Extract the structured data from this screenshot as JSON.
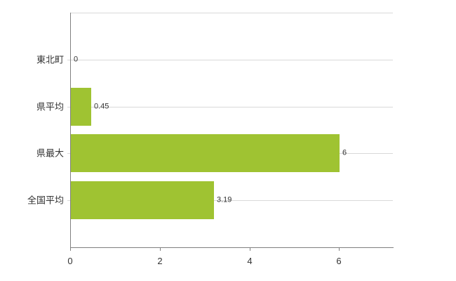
{
  "chart_data": {
    "type": "bar",
    "orientation": "horizontal",
    "title": "",
    "xlabel": "",
    "ylabel": "",
    "categories": [
      "東北町",
      "県平均",
      "県最大",
      "全国平均"
    ],
    "values": [
      0,
      0.45,
      6,
      3.19
    ],
    "value_labels": [
      "0",
      "0.45",
      "6",
      "3.19"
    ],
    "x_ticks": [
      0,
      2,
      4,
      6
    ],
    "x_tick_labels": [
      "0",
      "2",
      "4",
      "6"
    ],
    "xlim": [
      0,
      7.2
    ],
    "grid": "horizontal lines at each category, light gray; no vertical gridlines",
    "legend": "none",
    "colors": {
      "bar": "#9fc332",
      "axis": "#808080",
      "gridline": "#d9d9d9",
      "text": "#333333",
      "background": "#ffffff"
    }
  }
}
